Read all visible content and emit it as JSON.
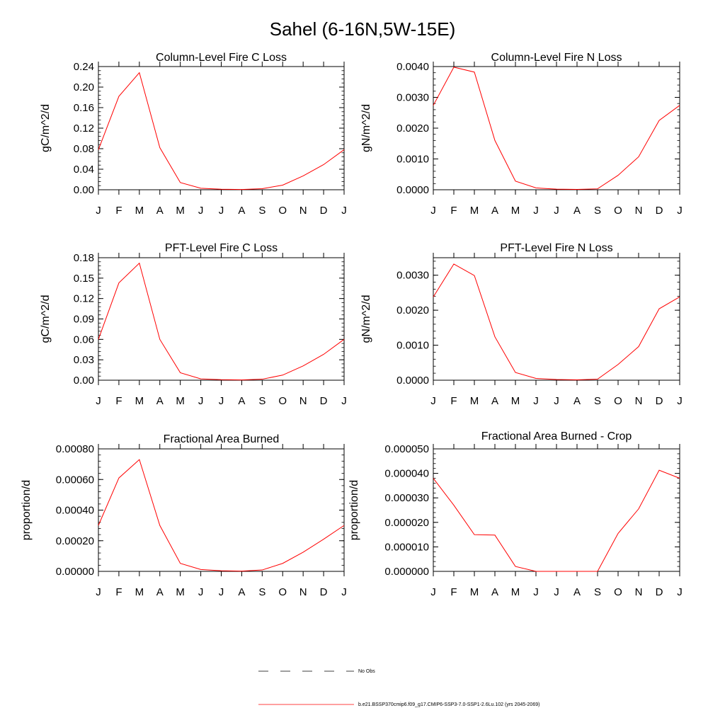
{
  "title": "Sahel (6-16N,5W-15E)",
  "months": [
    "J",
    "F",
    "M",
    "A",
    "M",
    "J",
    "J",
    "A",
    "S",
    "O",
    "N",
    "D",
    "J"
  ],
  "chart_data": [
    {
      "type": "line",
      "title": "Column-Level Fire C Loss",
      "ylabel": "gC/m^2/d",
      "ylim": [
        0,
        0.24
      ],
      "yticks": [
        "0.00",
        "0.04",
        "0.08",
        "0.12",
        "0.16",
        "0.20",
        "0.24"
      ],
      "series": [
        {
          "values": [
            0.078,
            0.182,
            0.228,
            0.082,
            0.014,
            0.003,
            0.001,
            0.0005,
            0.002,
            0.009,
            0.027,
            0.049,
            0.078
          ]
        }
      ]
    },
    {
      "type": "line",
      "title": "Column-Level Fire N Loss",
      "ylabel": "gN/m^2/d",
      "ylim": [
        0,
        0.004
      ],
      "yticks": [
        "0.0000",
        "0.0010",
        "0.0020",
        "0.0030",
        "0.0040"
      ],
      "series": [
        {
          "values": [
            0.00274,
            0.00398,
            0.00382,
            0.0016,
            0.00028,
            6e-05,
            2e-05,
            1e-05,
            3e-05,
            0.00047,
            0.00107,
            0.00225,
            0.00274
          ]
        }
      ]
    },
    {
      "type": "line",
      "title": "PFT-Level Fire C Loss",
      "ylabel": "gC/m^2/d",
      "ylim": [
        0,
        0.18
      ],
      "yticks": [
        "0.00",
        "0.03",
        "0.06",
        "0.09",
        "0.12",
        "0.15",
        "0.18"
      ],
      "series": [
        {
          "values": [
            0.06,
            0.143,
            0.172,
            0.06,
            0.011,
            0.002,
            0.0008,
            0.0004,
            0.0015,
            0.0075,
            0.021,
            0.038,
            0.06
          ]
        }
      ]
    },
    {
      "type": "line",
      "title": "PFT-Level Fire N Loss",
      "ylabel": "gN/m^2/d",
      "ylim": [
        0,
        0.0035
      ],
      "yticks": [
        "0.0000",
        "0.0010",
        "0.0020",
        "0.0030"
      ],
      "series": [
        {
          "values": [
            0.00238,
            0.00332,
            0.00299,
            0.00124,
            0.00022,
            5e-05,
            2e-05,
            1e-05,
            3e-05,
            0.00045,
            0.00096,
            0.00204,
            0.00238
          ]
        }
      ]
    },
    {
      "type": "line",
      "title": "Fractional Area Burned",
      "ylabel": "proportion/d",
      "ylim": [
        0,
        0.0008
      ],
      "yticks": [
        "0.00000",
        "0.00020",
        "0.00040",
        "0.00060",
        "0.00080"
      ],
      "series": [
        {
          "values": [
            0.0003,
            0.00061,
            0.00073,
            0.0003,
            5.2e-05,
            1.2e-05,
            4e-06,
            2e-06,
            9e-06,
            5.2e-05,
            0.000125,
            0.00021,
            0.0003
          ]
        }
      ]
    },
    {
      "type": "line",
      "title": "Fractional Area Burned - Crop",
      "ylabel": "proportion/d",
      "ylim": [
        0,
        5e-05
      ],
      "yticks": [
        "0.000000",
        "0.000010",
        "0.000020",
        "0.000030",
        "0.000040",
        "0.000050"
      ],
      "series": [
        {
          "values": [
            3.8e-05,
            2.7e-05,
            1.5e-05,
            1.48e-05,
            2e-06,
            0,
            0,
            0,
            0,
            1.55e-05,
            2.55e-05,
            4.13e-05,
            3.8e-05
          ]
        }
      ]
    }
  ],
  "legend": [
    {
      "label": "No Obs",
      "color": "#000000",
      "dash": true
    },
    {
      "label": "b.e21.BSSP370cmip6.f09_g17.CMIP6-SSP3-7.0-SSP1-2.6Lu.102 (yrs 2045-2069)",
      "color": "#ff0000",
      "dash": false
    }
  ],
  "colors": {
    "series": "#ff0000",
    "axes": "#000000"
  }
}
